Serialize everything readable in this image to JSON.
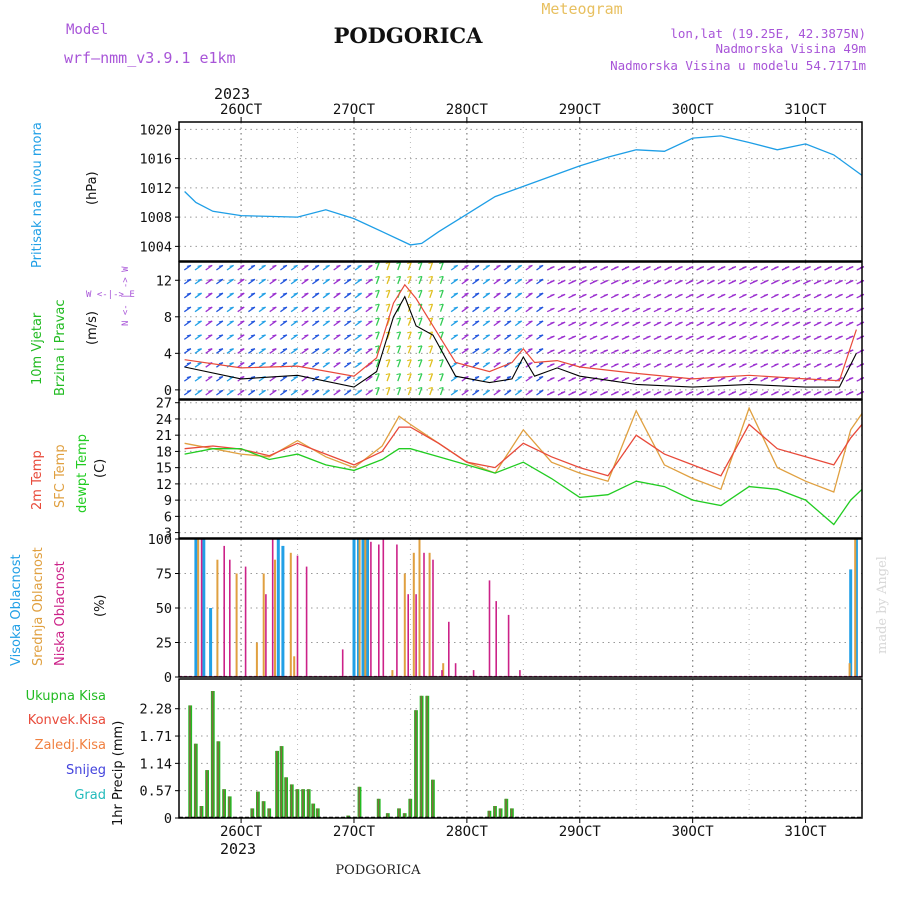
{
  "header": {
    "model_label": "Model",
    "model_name": "wrf–nmm_v3.9.1  e1km",
    "title": "PODGORICA",
    "meteogram": "Meteogram",
    "lonlat": "lon,lat (19.25E, 42.3875N)",
    "elev": "Nadmorska Visina 49m",
    "model_elev": "Nadmorska Visina u modelu 54.7171m",
    "year_top": "2023",
    "footer": "PODGORICA",
    "watermark": "made by Angel"
  },
  "colors": {
    "pressure": "#1e9ee6",
    "wind_label": "#22bb22",
    "wind_purple": "#9b30d0",
    "temp2m": "#e84a3a",
    "sfc": "#e0a040",
    "dew": "#22cc22",
    "high_cloud": "#22a0e6",
    "mid_cloud": "#e0a040",
    "low_cloud": "#cc2288",
    "rain": "#22bb22",
    "conv": "#e84a3a",
    "frozen": "#f08040",
    "snow": "#4444dd",
    "hail": "#22bbbb"
  },
  "chart_data": [
    {
      "type": "line",
      "panel": "pressure",
      "ylabel": [
        "Pritisak na nivou mora",
        "(hPa)"
      ],
      "ylim": [
        1002,
        1021
      ],
      "yticks": [
        1004,
        1008,
        1012,
        1016,
        1020
      ],
      "x": [
        25.5,
        25.6,
        25.75,
        26.0,
        26.25,
        26.5,
        26.75,
        27.0,
        27.25,
        27.5,
        27.6,
        27.75,
        28.0,
        28.25,
        28.5,
        28.75,
        29.0,
        29.25,
        29.5,
        29.75,
        30.0,
        30.25,
        30.5,
        30.75,
        31.0,
        31.25,
        31.5
      ],
      "series": [
        {
          "values": [
            1011.5,
            1010,
            1008.8,
            1008.2,
            1008.1,
            1008.0,
            1009.0,
            1007.8,
            1006.0,
            1004.2,
            1004.4,
            1006,
            1008.4,
            1010.8,
            1012.2,
            1013.6,
            1015.0,
            1016.2,
            1017.2,
            1017.0,
            1018.8,
            1019.1,
            1018.2,
            1017.2,
            1018.0,
            1016.5,
            1013.7
          ]
        }
      ]
    },
    {
      "type": "line",
      "panel": "wind",
      "ylabel": [
        "10m Vjetar",
        "Brzina i Pravac",
        "(m/s)"
      ],
      "ylim": [
        -1,
        14
      ],
      "yticks": [
        0,
        4,
        8,
        12
      ],
      "x": [
        25.5,
        26.0,
        26.5,
        27.0,
        27.2,
        27.35,
        27.45,
        27.55,
        27.7,
        27.9,
        28.2,
        28.4,
        28.5,
        28.6,
        28.8,
        29.0,
        29.5,
        30.0,
        30.5,
        31.0,
        31.3,
        31.45
      ],
      "series": [
        {
          "name": "speed",
          "values": [
            2.5,
            1.2,
            1.6,
            0.3,
            2,
            8,
            10.2,
            7,
            6,
            1.5,
            0.8,
            1.2,
            3.6,
            1.5,
            2.4,
            1.5,
            0.6,
            0.3,
            0.6,
            0.3,
            0.3,
            4
          ]
        },
        {
          "name": "gust",
          "values": [
            3.3,
            2.4,
            2.6,
            1.5,
            3.5,
            9.5,
            11.5,
            10,
            7,
            3,
            2,
            3,
            4.5,
            3,
            3.2,
            2.5,
            1.8,
            1.2,
            1.6,
            1.2,
            1.0,
            6.6
          ]
        }
      ],
      "legend_vertical": "N <- | -> W",
      "legend_horizontal": "W <-|-> E"
    },
    {
      "type": "line",
      "panel": "temperature",
      "ylabel": [
        "2m Temp",
        "SFC Temp",
        "dewpt Temp",
        "(C)"
      ],
      "ylim": [
        2,
        27.5
      ],
      "yticks": [
        3,
        6,
        9,
        12,
        15,
        18,
        21,
        24,
        27
      ],
      "x": [
        25.5,
        25.75,
        26.0,
        26.25,
        26.5,
        26.75,
        27.0,
        27.25,
        27.4,
        27.5,
        27.75,
        28.0,
        28.25,
        28.5,
        28.75,
        29.0,
        29.25,
        29.5,
        29.75,
        30.0,
        30.25,
        30.5,
        30.75,
        31.0,
        31.25,
        31.4,
        31.5
      ],
      "series": [
        {
          "name": "2m Temp",
          "values": [
            18.5,
            19,
            18.4,
            17.2,
            19.5,
            17.5,
            15.5,
            18,
            22.5,
            22.5,
            19.5,
            16,
            15,
            19.5,
            17,
            15,
            13.5,
            21,
            17.5,
            15.5,
            13.5,
            23,
            18.5,
            17,
            15.5,
            20.5,
            23
          ]
        },
        {
          "name": "SFC Temp",
          "values": [
            19.5,
            18.5,
            17.5,
            17,
            20,
            17,
            15,
            19,
            24.5,
            23,
            19.5,
            16,
            14,
            22,
            16,
            14,
            12.5,
            25.5,
            15.5,
            13,
            11,
            26,
            15,
            12.5,
            10.5,
            22,
            25
          ]
        },
        {
          "name": "dewpt Temp",
          "values": [
            17.5,
            18.5,
            18.5,
            16.5,
            17.5,
            15.5,
            14.5,
            16.5,
            18.5,
            18.5,
            17,
            15.5,
            14,
            16,
            13,
            9.5,
            10,
            12.5,
            11.5,
            9,
            8,
            11.5,
            11,
            9,
            4.5,
            9,
            11
          ]
        }
      ]
    },
    {
      "type": "bar",
      "panel": "clouds",
      "ylabel": [
        "Visoka Oblacnost",
        "Srednja Oblacnost",
        "Niska Oblacnost",
        "(%)"
      ],
      "ylim": [
        0,
        100
      ],
      "yticks": [
        0,
        25,
        50,
        75,
        100
      ],
      "series": [
        {
          "name": "Visoka Oblacnost",
          "x": [
            25.6,
            25.67,
            25.73,
            26.33,
            26.37,
            27.0,
            27.04,
            27.08,
            27.12,
            31.4,
            31.45
          ],
          "values": [
            100,
            100,
            50,
            100,
            95,
            100,
            100,
            100,
            100,
            78,
            100
          ]
        },
        {
          "name": "Srednja Oblacnost",
          "x": [
            25.62,
            25.79,
            25.96,
            26.14,
            26.2,
            26.3,
            26.44,
            26.47,
            27.05,
            27.1,
            27.34,
            27.45,
            27.53,
            27.58,
            27.67,
            27.79,
            31.39,
            31.44
          ],
          "values": [
            100,
            85,
            75,
            25,
            75,
            85,
            90,
            15,
            100,
            100,
            5,
            75,
            90,
            100,
            90,
            10,
            10,
            100
          ]
        },
        {
          "name": "Niska Oblacnost",
          "x": [
            25.65,
            25.85,
            25.9,
            26.04,
            26.22,
            26.28,
            26.5,
            26.58,
            26.9,
            27.15,
            27.22,
            27.26,
            27.38,
            27.48,
            27.55,
            27.62,
            27.7,
            27.78,
            27.84,
            27.9,
            28.06,
            28.2,
            28.26,
            28.37,
            28.47
          ],
          "values": [
            100,
            95,
            85,
            80,
            60,
            100,
            88,
            80,
            20,
            98,
            96,
            100,
            96,
            60,
            60,
            90,
            85,
            5,
            40,
            10,
            5,
            70,
            55,
            45,
            5
          ]
        }
      ]
    },
    {
      "type": "bar",
      "panel": "precipitation",
      "ylabel": [
        "1hr Precip (mm)"
      ],
      "legend": [
        "Ukupna Kisa",
        "Konvek.Kisa",
        "Zaledj.Kisa",
        "Snijeg",
        "Grad"
      ],
      "ylim": [
        0,
        2.9
      ],
      "yticks": [
        0,
        0.57,
        1.14,
        1.71,
        2.28
      ],
      "x": [
        25.55,
        25.6,
        25.65,
        25.7,
        25.75,
        25.8,
        25.85,
        25.9,
        26.1,
        26.15,
        26.2,
        26.25,
        26.32,
        26.36,
        26.4,
        26.45,
        26.5,
        26.55,
        26.6,
        26.64,
        26.68,
        26.95,
        27.05,
        27.22,
        27.3,
        27.4,
        27.45,
        27.5,
        27.55,
        27.6,
        27.65,
        27.7,
        28.2,
        28.25,
        28.3,
        28.35,
        28.4
      ],
      "values": [
        2.35,
        1.55,
        0.25,
        1.0,
        2.65,
        1.6,
        0.6,
        0.45,
        0.2,
        0.55,
        0.35,
        0.2,
        1.4,
        1.5,
        0.85,
        0.7,
        0.6,
        0.6,
        0.6,
        0.3,
        0.2,
        0.05,
        0.65,
        0.4,
        0.1,
        0.2,
        0.1,
        0.4,
        2.25,
        2.55,
        2.55,
        0.8,
        0.15,
        0.25,
        0.2,
        0.4,
        0.2
      ]
    }
  ],
  "xaxis": {
    "xlim": [
      25.45,
      31.5
    ],
    "days": [
      26,
      27,
      28,
      29,
      30,
      31
    ],
    "tick_labels": [
      "26OCT",
      "27OCT",
      "28OCT",
      "29OCT",
      "30OCT",
      "31OCT"
    ],
    "year_bottom": "2023"
  }
}
